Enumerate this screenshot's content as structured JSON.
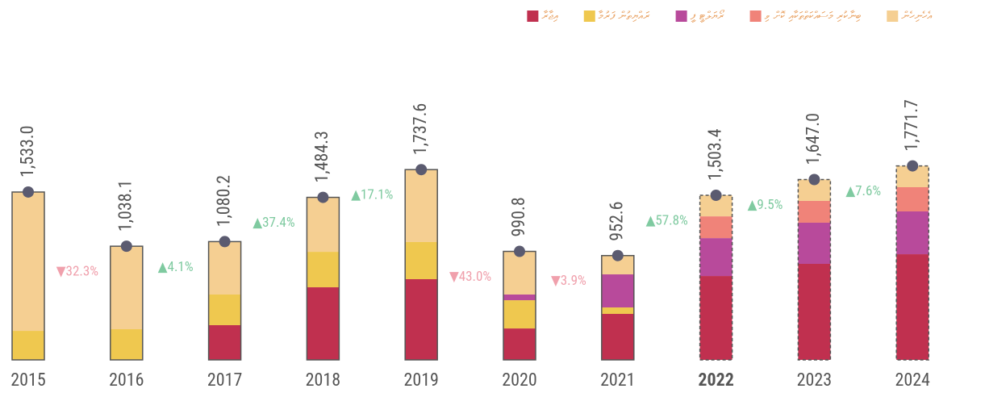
{
  "chart_data": {
    "type": "stacked_bar",
    "categories": [
      "2015",
      "2016",
      "2017",
      "2018",
      "2019",
      "2020",
      "2021",
      "2022",
      "2023",
      "2024"
    ],
    "series": [
      {
        "name": "އިޖާރާ",
        "color": "#c0304f",
        "values": [
          null,
          null,
          317,
          663,
          737,
          287,
          420,
          766,
          877,
          965
        ]
      },
      {
        "name": "ރައްޔިތުން ފަރުމާ",
        "color": "#efc84f",
        "values": [
          265,
          280,
          280,
          324,
          339,
          258,
          59,
          null,
          null,
          null
        ]
      },
      {
        "name": "ރޯޔަލްޓީ ފީ",
        "color": "#b84a9b",
        "values": [
          null,
          null,
          null,
          null,
          null,
          52,
          302,
          346,
          376,
          391
        ]
      },
      {
        "name": "ބިނާކުރި މަސައްކަތްތަކާއި ކޮށް ވި",
        "color": "#f08379",
        "values": [
          null,
          null,
          null,
          null,
          null,
          null,
          null,
          199,
          199,
          221
        ]
      },
      {
        "name": "އެހެނިހެން",
        "color": "#f5cf92",
        "values": [
          1268,
          758.1,
          483.2,
          497.3,
          661.6,
          393.8,
          171.6,
          192.4,
          195,
          194.7
        ]
      }
    ],
    "totals": [
      1533.0,
      1038.1,
      1080.2,
      1484.3,
      1737.6,
      990.8,
      952.6,
      1503.4,
      1647.0,
      1771.7
    ],
    "total_labels": [
      "1,533.0",
      "1,038.1",
      "1,080.2",
      "1,484.3",
      "1,737.6",
      "990.8",
      "952.6",
      "1,503.4",
      "1,647.0",
      "1,771.7"
    ],
    "changes": [
      -32.3,
      4.1,
      37.4,
      17.1,
      -43.0,
      -3.9,
      57.8,
      9.5,
      7.6
    ],
    "change_labels": [
      "▼32.3%",
      "▲4.1%",
      "▲37.4%",
      "▲17.1%",
      "▼43.0%",
      "▼3.9%",
      "▲57.8%",
      "▲9.5%",
      "▲7.6%"
    ],
    "projected": [
      false,
      false,
      false,
      false,
      false,
      false,
      false,
      true,
      true,
      true
    ],
    "ylim": [
      0,
      2000
    ]
  }
}
